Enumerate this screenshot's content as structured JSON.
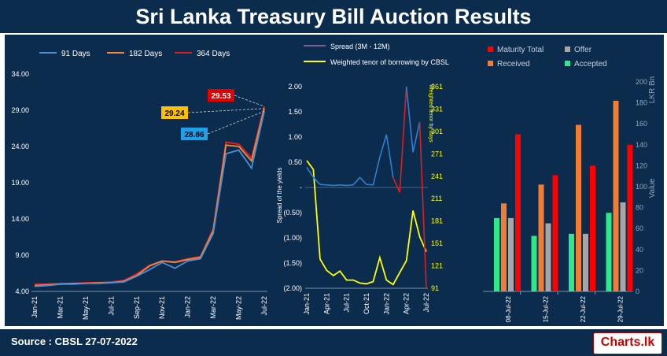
{
  "header": {
    "title": "Sri Lanka Treasury Bill Auction Results"
  },
  "footer": {
    "source": "Source : CBSL 27-07-2022",
    "logo_text": "Charts.lk"
  },
  "colors": {
    "background": "#0c2c4d",
    "bill_91": "#4a8fd6",
    "bill_182": "#f08a3c",
    "bill_364": "#e01e1e",
    "spread": "#2f7fd0",
    "spread_negative": "#e01e1e",
    "tenor": "#ffff00",
    "maturity_total": "#ff0000",
    "received": "#f07d33",
    "offer": "#a6a6a6",
    "accepted": "#2ee88a"
  },
  "chart_data": [
    {
      "type": "line",
      "title": "",
      "xlabel": "",
      "ylabel": "",
      "ylim": [
        4.0,
        34.0
      ],
      "yticks": [
        "4.00",
        "9.00",
        "14.00",
        "19.00",
        "24.00",
        "29.00",
        "34.00"
      ],
      "xticks": [
        "Jan-21",
        "Mar-21",
        "May-21",
        "Jul-21",
        "Sep-21",
        "Nov-21",
        "Jan-22",
        "Mar-22",
        "May-22",
        "Jul-22"
      ],
      "legend": {
        "position": "top"
      },
      "x": [
        "Jan-21",
        "Feb-21",
        "Mar-21",
        "Apr-21",
        "May-21",
        "Jun-21",
        "Jul-21",
        "Aug-21",
        "Sep-21",
        "Oct-21",
        "Nov-21",
        "Dec-21",
        "Jan-22",
        "Feb-22",
        "Mar-22",
        "Apr-22",
        "May-22",
        "Jun-22",
        "Jul-22"
      ],
      "series": [
        {
          "name": "91 Days",
          "values": [
            4.7,
            4.8,
            5.0,
            5.0,
            5.1,
            5.1,
            5.2,
            5.3,
            6.1,
            7.0,
            8.0,
            7.2,
            8.2,
            8.5,
            12.0,
            23.0,
            23.5,
            21.0,
            28.86
          ]
        },
        {
          "name": "182 Days",
          "values": [
            4.8,
            4.9,
            5.0,
            5.1,
            5.1,
            5.2,
            5.2,
            5.4,
            6.2,
            7.5,
            8.2,
            8.0,
            8.4,
            8.7,
            12.4,
            24.2,
            24.0,
            22.0,
            29.24
          ]
        },
        {
          "name": "364 Days",
          "values": [
            5.0,
            5.0,
            5.1,
            5.1,
            5.2,
            5.2,
            5.3,
            5.5,
            6.4,
            7.6,
            8.2,
            8.1,
            8.5,
            8.8,
            12.6,
            24.6,
            24.3,
            22.4,
            29.53
          ]
        }
      ],
      "annotations": [
        {
          "series": "364 Days",
          "text": "29.53"
        },
        {
          "series": "182 Days",
          "text": "29.24"
        },
        {
          "series": "91 Days",
          "text": "28.86"
        }
      ]
    },
    {
      "type": "line",
      "title": "",
      "xlabel": "",
      "ylabel": "Spread of the yields",
      "ylabel_right": "Weighted tenor by days",
      "ylim": [
        -2.0,
        2.0
      ],
      "ylim_right": [
        91,
        361
      ],
      "yticks": [
        "2.00",
        "1.50",
        "1.00",
        "0.50",
        "-",
        "(0.50)",
        "(1.00)",
        "(1.50)",
        "(2.00)"
      ],
      "yticks_right": [
        "361",
        "331",
        "301",
        "271",
        "241",
        "211",
        "181",
        "151",
        "121",
        "91"
      ],
      "xticks": [
        "Jan-21",
        "Apr-21",
        "Jul-21",
        "Oct-21",
        "Jan-22",
        "Apr-22",
        "Jul-22"
      ],
      "legend": {
        "position": "top"
      },
      "x": [
        "Jan-21",
        "Feb-21",
        "Mar-21",
        "Apr-21",
        "May-21",
        "Jun-21",
        "Jul-21",
        "Aug-21",
        "Sep-21",
        "Oct-21",
        "Nov-21",
        "Dec-21",
        "Jan-22",
        "Feb-22",
        "Mar-22",
        "Apr-22",
        "May-22",
        "Jun-22",
        "Jul-22"
      ],
      "series": [
        {
          "name": "Spread (3M - 12M)",
          "values": [
            0.4,
            0.2,
            0.06,
            0.05,
            0.04,
            0.05,
            0.04,
            0.05,
            0.2,
            0.06,
            0.05,
            0.6,
            1.05,
            0.2,
            -0.1,
            2.0,
            0.7,
            1.3,
            -2.0
          ]
        },
        {
          "name": "Weighted tenor of borrowing by CBSL",
          "axis": "right",
          "values": [
            262,
            250,
            130,
            115,
            108,
            114,
            102,
            102,
            98,
            97,
            100,
            132,
            102,
            96,
            112,
            128,
            195,
            160,
            140
          ]
        }
      ]
    },
    {
      "type": "bar",
      "title": "",
      "xlabel": "",
      "ylabel": "LKR Bn",
      "ylabel_secondary": "Value",
      "ylim": [
        0,
        200
      ],
      "yticks": [
        "0",
        "20",
        "40",
        "60",
        "80",
        "100",
        "120",
        "140",
        "160",
        "180",
        "200"
      ],
      "legend": {
        "position": "top"
      },
      "categories": [
        "08-Jul-22",
        "15-Jul-22",
        "22-Jul-22",
        "29-Jul-22"
      ],
      "series": [
        {
          "name": "Accepted",
          "values": [
            70,
            53,
            55,
            75
          ]
        },
        {
          "name": "Received",
          "values": [
            84,
            102,
            159,
            182
          ]
        },
        {
          "name": "Offer",
          "values": [
            70,
            65,
            55,
            85
          ]
        },
        {
          "name": "Maturity Total",
          "values": [
            150,
            111,
            120,
            140
          ]
        }
      ]
    }
  ]
}
